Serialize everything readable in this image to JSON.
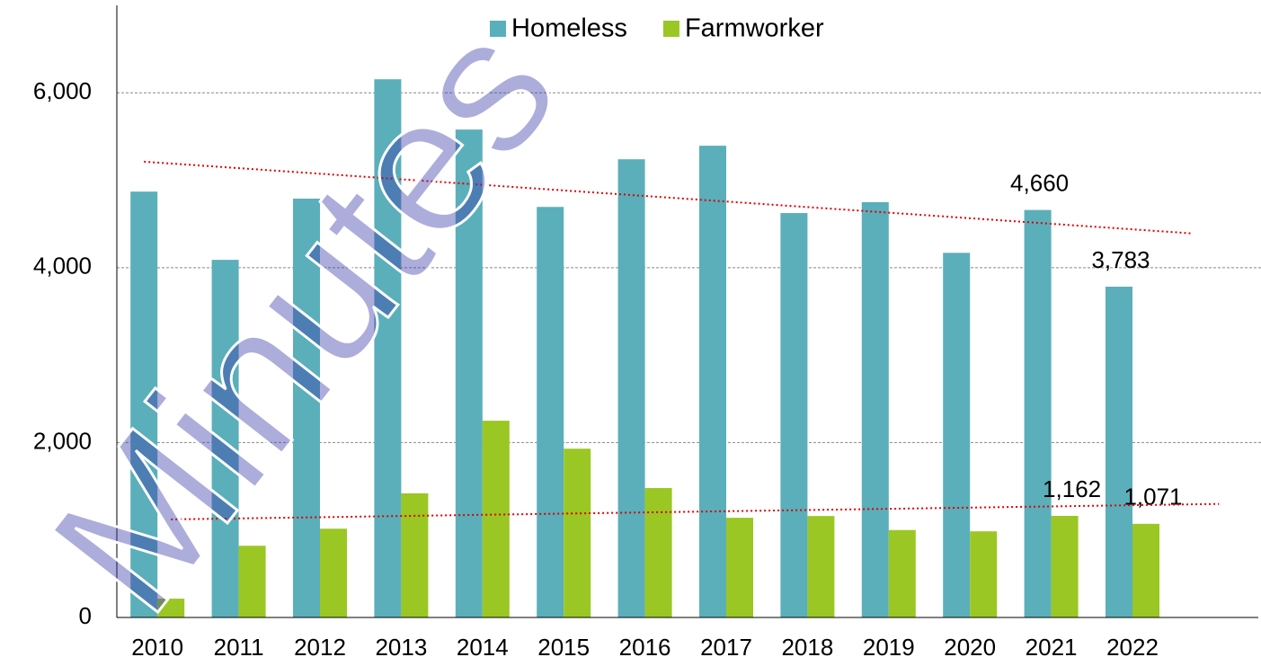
{
  "chart_data": {
    "type": "bar",
    "categories": [
      "2010",
      "2011",
      "2012",
      "2013",
      "2014",
      "2015",
      "2016",
      "2017",
      "2018",
      "2019",
      "2020",
      "2021",
      "2022"
    ],
    "series": [
      {
        "name": "Homeless",
        "color": "#5aafba",
        "values": [
          4870,
          4090,
          4790,
          6155,
          5580,
          4695,
          5240,
          5395,
          4625,
          4750,
          4170,
          4660,
          3783
        ],
        "value_labels": [
          null,
          null,
          null,
          null,
          null,
          null,
          null,
          null,
          null,
          null,
          null,
          "4,660",
          "3,783"
        ]
      },
      {
        "name": "Farmworker",
        "color": "#9ac723",
        "values": [
          215,
          820,
          1015,
          1420,
          2250,
          1930,
          1480,
          1140,
          1160,
          1000,
          985,
          1162,
          1071
        ],
        "value_labels": [
          null,
          null,
          null,
          null,
          null,
          null,
          null,
          null,
          null,
          null,
          null,
          "1,162",
          "1,071"
        ]
      }
    ],
    "ylim": [
      0,
      7000
    ],
    "yticks": [
      0,
      {
        "value": 2000,
        "label": "2,000"
      },
      {
        "value": 4000,
        "label": "4,000"
      },
      {
        "value": 6000,
        "label": "6,000"
      }
    ],
    "grid": true,
    "legend": "top",
    "trendline": true,
    "trendline_color": "#e00000",
    "watermark": "Minutes"
  }
}
